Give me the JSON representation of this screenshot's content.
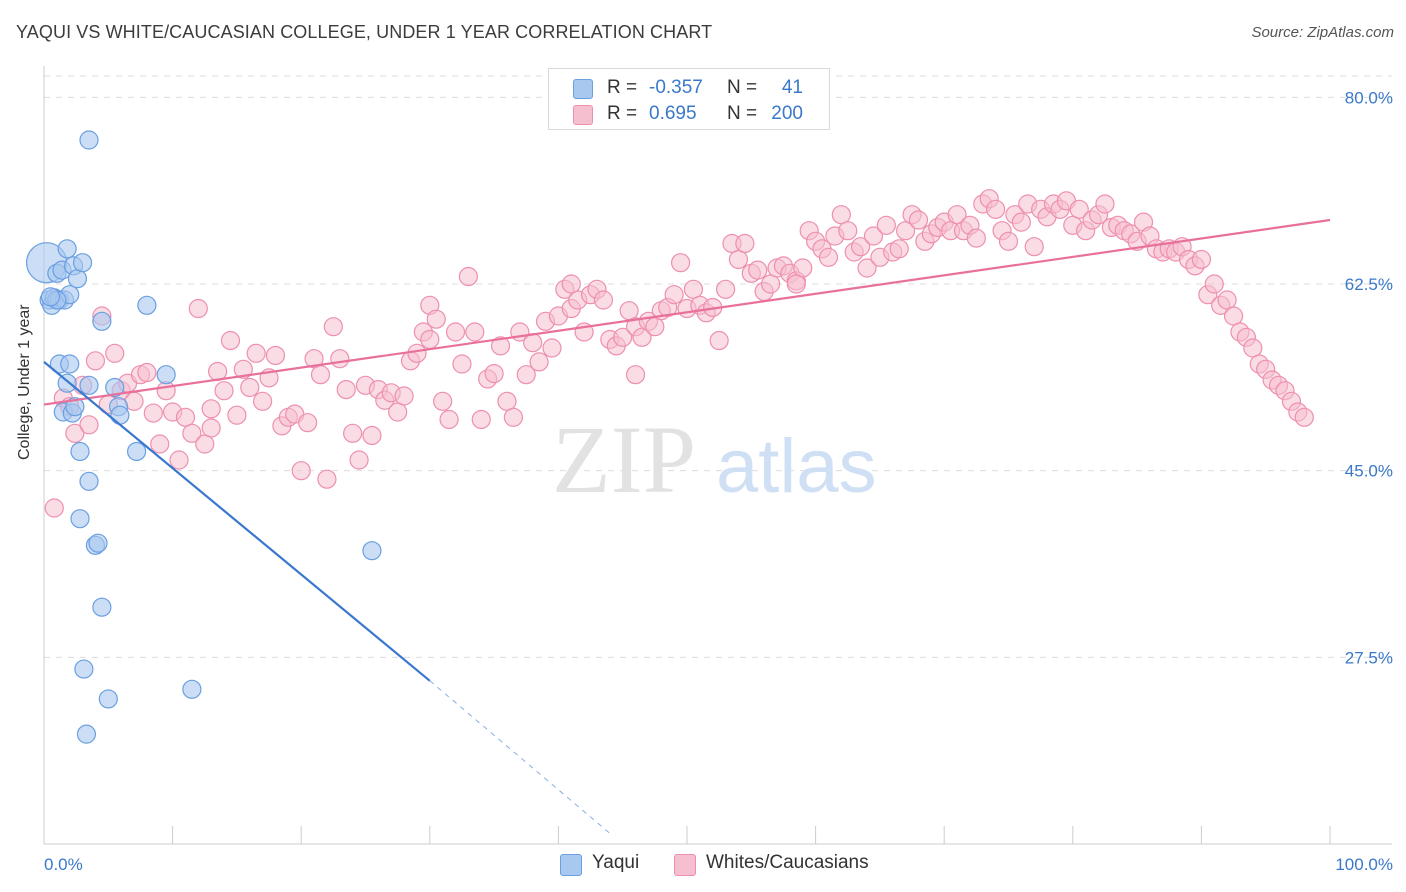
{
  "title": "YAQUI VS WHITE/CAUCASIAN COLLEGE, UNDER 1 YEAR CORRELATION CHART",
  "source": "Source: ZipAtlas.com",
  "watermark": {
    "zip": "ZIP",
    "atlas": "atlas"
  },
  "legend": {
    "rows": [
      {
        "r_label": "R =",
        "r_value": "-0.357",
        "n_label": "N =",
        "n_value": "41"
      },
      {
        "r_label": "R =",
        "r_value": "0.695",
        "n_label": "N =",
        "n_value": "200"
      }
    ]
  },
  "bottom_legend": {
    "yaqui": "Yaqui",
    "whites": "Whites/Caucasians"
  },
  "colors": {
    "yaqui_fill": "#a9c8f0",
    "yaqui_stroke": "#6a9fe0",
    "yaqui_line": "#3a78d0",
    "white_fill": "#f6bfd0",
    "white_stroke": "#ee8fae",
    "white_line": "#e8709a",
    "tick_label": "#3a78c9",
    "grid": "#dcdcdc"
  },
  "chart_data": {
    "type": "scatter",
    "title": "YAQUI VS WHITE/CAUCASIAN COLLEGE, UNDER 1 YEAR CORRELATION CHART",
    "xlabel": "",
    "ylabel": "College, Under 1 year",
    "xlim": [
      0,
      100
    ],
    "ylim": [
      10,
      82
    ],
    "x_tick_labels": [
      "0.0%",
      "100.0%"
    ],
    "y_ticks": [
      27.5,
      45.0,
      62.5,
      80.0
    ],
    "y_tick_labels": [
      "27.5%",
      "45.0%",
      "62.5%",
      "80.0%"
    ],
    "grid": true,
    "legend_position": "top-center",
    "series": [
      {
        "name": "Yaqui",
        "R": -0.357,
        "N": 41,
        "trend": {
          "x": [
            0,
            30,
            44
          ],
          "y": [
            55.2,
            25.3,
            11.0
          ],
          "solid_until_x": 30
        },
        "points": [
          [
            0.2,
            64.5
          ],
          [
            0.4,
            61.0
          ],
          [
            0.6,
            60.5
          ],
          [
            0.8,
            61.2
          ],
          [
            1.0,
            63.5
          ],
          [
            1.2,
            61.0
          ],
          [
            1.4,
            63.8
          ],
          [
            1.6,
            61.0
          ],
          [
            1.8,
            65.8
          ],
          [
            2.0,
            61.5
          ],
          [
            2.3,
            64.2
          ],
          [
            2.6,
            63.0
          ],
          [
            3.0,
            64.5
          ],
          [
            3.5,
            76.0
          ],
          [
            4.5,
            59.0
          ],
          [
            8.0,
            60.5
          ],
          [
            1.2,
            55.0
          ],
          [
            2.0,
            55.0
          ],
          [
            1.8,
            53.2
          ],
          [
            3.5,
            53.0
          ],
          [
            1.5,
            50.5
          ],
          [
            2.2,
            50.4
          ],
          [
            2.4,
            51.0
          ],
          [
            5.5,
            52.8
          ],
          [
            5.8,
            51.0
          ],
          [
            5.9,
            50.2
          ],
          [
            9.5,
            54.0
          ],
          [
            2.8,
            46.8
          ],
          [
            3.5,
            44.0
          ],
          [
            2.8,
            40.5
          ],
          [
            4.0,
            38.0
          ],
          [
            4.2,
            38.2
          ],
          [
            7.2,
            46.8
          ],
          [
            25.5,
            37.5
          ],
          [
            4.5,
            32.2
          ],
          [
            3.1,
            26.4
          ],
          [
            5.0,
            23.6
          ],
          [
            11.5,
            24.5
          ],
          [
            3.3,
            20.3
          ],
          [
            1.0,
            61.0
          ],
          [
            0.5,
            61.3
          ]
        ],
        "sizes": {
          "0": 30
        }
      },
      {
        "name": "Whites/Caucasians",
        "R": 0.695,
        "N": 200,
        "trend": {
          "x": [
            0,
            100
          ],
          "y": [
            51.2,
            68.5
          ]
        },
        "points": [
          [
            0.8,
            41.5
          ],
          [
            1.5,
            51.8
          ],
          [
            2.0,
            51.0
          ],
          [
            2.4,
            48.5
          ],
          [
            3.0,
            53.0
          ],
          [
            3.5,
            49.3
          ],
          [
            4.0,
            55.3
          ],
          [
            4.5,
            59.5
          ],
          [
            5.0,
            51.2
          ],
          [
            5.5,
            56.0
          ],
          [
            6.0,
            52.5
          ],
          [
            6.5,
            53.2
          ],
          [
            7.0,
            51.5
          ],
          [
            7.5,
            54.0
          ],
          [
            8.0,
            54.2
          ],
          [
            8.5,
            50.4
          ],
          [
            9.0,
            47.5
          ],
          [
            9.5,
            52.5
          ],
          [
            10.0,
            50.5
          ],
          [
            10.5,
            46.0
          ],
          [
            11.0,
            50.0
          ],
          [
            11.5,
            48.5
          ],
          [
            12.0,
            60.2
          ],
          [
            12.5,
            47.5
          ],
          [
            13.0,
            50.8
          ],
          [
            13.5,
            54.3
          ],
          [
            14.0,
            52.5
          ],
          [
            14.5,
            57.2
          ],
          [
            15.0,
            50.2
          ],
          [
            15.5,
            54.5
          ],
          [
            16.0,
            52.8
          ],
          [
            16.5,
            56.0
          ],
          [
            17.0,
            51.5
          ],
          [
            17.5,
            53.7
          ],
          [
            18.0,
            55.8
          ],
          [
            18.5,
            49.2
          ],
          [
            19.0,
            50.0
          ],
          [
            19.5,
            50.3
          ],
          [
            20.0,
            45.0
          ],
          [
            20.5,
            49.5
          ],
          [
            21.0,
            55.5
          ],
          [
            21.5,
            54.0
          ],
          [
            22.0,
            44.2
          ],
          [
            22.5,
            58.5
          ],
          [
            23.0,
            55.5
          ],
          [
            23.5,
            52.6
          ],
          [
            24.0,
            48.5
          ],
          [
            24.5,
            46.0
          ],
          [
            25.0,
            53.0
          ],
          [
            25.5,
            48.3
          ],
          [
            26.0,
            52.6
          ],
          [
            26.5,
            51.6
          ],
          [
            27.0,
            52.3
          ],
          [
            27.5,
            50.5
          ],
          [
            28.0,
            52.0
          ],
          [
            28.5,
            55.3
          ],
          [
            29.0,
            56.0
          ],
          [
            29.5,
            58.0
          ],
          [
            30.0,
            60.5
          ],
          [
            30.5,
            59.2
          ],
          [
            31.0,
            51.5
          ],
          [
            31.5,
            49.8
          ],
          [
            32.0,
            58.0
          ],
          [
            32.5,
            55.0
          ],
          [
            33.0,
            63.2
          ],
          [
            33.5,
            58.0
          ],
          [
            34.0,
            49.8
          ],
          [
            34.5,
            53.6
          ],
          [
            35.0,
            54.1
          ],
          [
            35.5,
            56.7
          ],
          [
            36.0,
            51.5
          ],
          [
            36.5,
            50.0
          ],
          [
            37.0,
            58.0
          ],
          [
            37.5,
            54.0
          ],
          [
            38.0,
            57.0
          ],
          [
            38.5,
            55.2
          ],
          [
            39.0,
            59.0
          ],
          [
            39.5,
            56.5
          ],
          [
            40.0,
            59.5
          ],
          [
            40.5,
            62.0
          ],
          [
            41.0,
            60.2
          ],
          [
            41.5,
            61.0
          ],
          [
            42.0,
            58.0
          ],
          [
            42.5,
            61.5
          ],
          [
            43.0,
            62.0
          ],
          [
            43.5,
            61.0
          ],
          [
            44.0,
            57.3
          ],
          [
            44.5,
            56.7
          ],
          [
            45.0,
            57.5
          ],
          [
            45.5,
            60.0
          ],
          [
            46.0,
            58.5
          ],
          [
            46.5,
            57.5
          ],
          [
            47.0,
            59.0
          ],
          [
            47.5,
            58.5
          ],
          [
            48.0,
            60.0
          ],
          [
            48.5,
            60.3
          ],
          [
            49.0,
            61.5
          ],
          [
            49.5,
            64.5
          ],
          [
            50.0,
            60.2
          ],
          [
            50.5,
            62.0
          ],
          [
            51.0,
            60.5
          ],
          [
            51.5,
            59.8
          ],
          [
            52.0,
            60.3
          ],
          [
            52.5,
            57.2
          ],
          [
            53.0,
            62.0
          ],
          [
            53.5,
            66.3
          ],
          [
            54.0,
            64.8
          ],
          [
            54.5,
            66.3
          ],
          [
            55.0,
            63.5
          ],
          [
            55.5,
            63.8
          ],
          [
            56.0,
            61.8
          ],
          [
            56.5,
            62.5
          ],
          [
            57.0,
            64.0
          ],
          [
            57.5,
            64.2
          ],
          [
            58.0,
            63.5
          ],
          [
            58.5,
            62.8
          ],
          [
            59.0,
            64.0
          ],
          [
            59.5,
            67.5
          ],
          [
            60.0,
            66.5
          ],
          [
            60.5,
            65.8
          ],
          [
            61.0,
            65.0
          ],
          [
            61.5,
            67.0
          ],
          [
            62.0,
            69.0
          ],
          [
            62.5,
            67.5
          ],
          [
            63.0,
            65.5
          ],
          [
            63.5,
            66.0
          ],
          [
            64.0,
            64.0
          ],
          [
            64.5,
            67.0
          ],
          [
            65.0,
            65.0
          ],
          [
            65.5,
            68.0
          ],
          [
            66.0,
            65.5
          ],
          [
            66.5,
            65.8
          ],
          [
            67.0,
            67.5
          ],
          [
            67.5,
            69.0
          ],
          [
            68.0,
            68.5
          ],
          [
            68.5,
            66.5
          ],
          [
            69.0,
            67.2
          ],
          [
            69.5,
            67.8
          ],
          [
            70.0,
            68.3
          ],
          [
            70.5,
            67.5
          ],
          [
            71.0,
            69.0
          ],
          [
            71.5,
            67.5
          ],
          [
            72.0,
            68.0
          ],
          [
            72.5,
            66.8
          ],
          [
            73.0,
            70.0
          ],
          [
            73.5,
            70.5
          ],
          [
            74.0,
            69.5
          ],
          [
            74.5,
            67.5
          ],
          [
            75.0,
            66.5
          ],
          [
            75.5,
            69.0
          ],
          [
            76.0,
            68.3
          ],
          [
            76.5,
            70.0
          ],
          [
            77.0,
            66.0
          ],
          [
            77.5,
            69.5
          ],
          [
            78.0,
            68.8
          ],
          [
            78.5,
            70.0
          ],
          [
            79.0,
            69.5
          ],
          [
            79.5,
            70.3
          ],
          [
            80.0,
            68.0
          ],
          [
            80.5,
            69.5
          ],
          [
            81.0,
            67.5
          ],
          [
            81.5,
            68.5
          ],
          [
            82.0,
            69.0
          ],
          [
            82.5,
            70.0
          ],
          [
            83.0,
            67.8
          ],
          [
            83.5,
            68.0
          ],
          [
            84.0,
            67.5
          ],
          [
            84.5,
            67.2
          ],
          [
            85.0,
            66.5
          ],
          [
            85.5,
            68.3
          ],
          [
            86.0,
            67.0
          ],
          [
            86.5,
            65.8
          ],
          [
            87.0,
            65.5
          ],
          [
            87.5,
            65.8
          ],
          [
            88.0,
            65.5
          ],
          [
            88.5,
            66.0
          ],
          [
            89.0,
            64.8
          ],
          [
            89.5,
            64.2
          ],
          [
            90.0,
            64.8
          ],
          [
            90.5,
            61.5
          ],
          [
            91.0,
            62.5
          ],
          [
            91.5,
            60.5
          ],
          [
            92.0,
            61.0
          ],
          [
            92.5,
            59.5
          ],
          [
            93.0,
            58.0
          ],
          [
            93.5,
            57.5
          ],
          [
            94.0,
            56.5
          ],
          [
            94.5,
            55.0
          ],
          [
            95.0,
            54.5
          ],
          [
            95.5,
            53.5
          ],
          [
            96.0,
            53.0
          ],
          [
            96.5,
            52.5
          ],
          [
            97.0,
            51.5
          ],
          [
            97.5,
            50.5
          ],
          [
            98.0,
            50.0
          ],
          [
            46.0,
            54.0
          ],
          [
            13.0,
            49.0
          ],
          [
            30.0,
            57.3
          ],
          [
            41.0,
            62.5
          ],
          [
            58.5,
            62.5
          ]
        ]
      }
    ]
  }
}
